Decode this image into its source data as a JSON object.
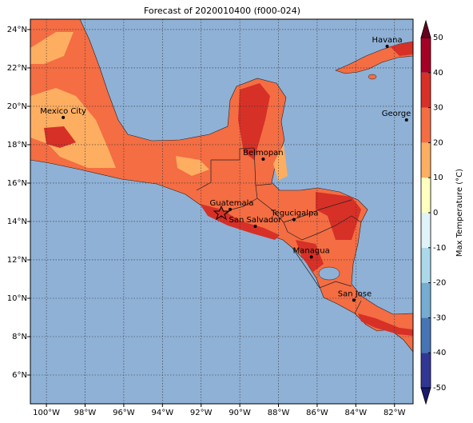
{
  "title": "Forecast of 2020010400 (f000-024)",
  "map": {
    "type": "contour-map",
    "xlim": [
      -100.83,
      -81.04
    ],
    "ylim": [
      4.5,
      24.54
    ],
    "xticks": [
      {
        "value": -100,
        "label": "100°W"
      },
      {
        "value": -98,
        "label": "98°W"
      },
      {
        "value": -96,
        "label": "96°W"
      },
      {
        "value": -94,
        "label": "94°W"
      },
      {
        "value": -92,
        "label": "92°W"
      },
      {
        "value": -90,
        "label": "90°W"
      },
      {
        "value": -88,
        "label": "88°W"
      },
      {
        "value": -86,
        "label": "86°W"
      },
      {
        "value": -84,
        "label": "84°W"
      },
      {
        "value": -82,
        "label": "82°W"
      }
    ],
    "yticks": [
      {
        "value": 6,
        "label": "6°N"
      },
      {
        "value": 8,
        "label": "8°N"
      },
      {
        "value": 10,
        "label": "10°N"
      },
      {
        "value": 12,
        "label": "12°N"
      },
      {
        "value": 14,
        "label": "14°N"
      },
      {
        "value": 16,
        "label": "16°N"
      },
      {
        "value": 18,
        "label": "18°N"
      },
      {
        "value": 20,
        "label": "20°N"
      },
      {
        "value": 22,
        "label": "22°N"
      },
      {
        "value": 24,
        "label": "24°N"
      }
    ],
    "grid": true,
    "cities": [
      {
        "name": "Mexico City",
        "lon": -99.13,
        "lat": 19.42
      },
      {
        "name": "Havana",
        "lon": -82.38,
        "lat": 23.13
      },
      {
        "name": "George Town",
        "lon": -81.38,
        "lat": 19.29
      },
      {
        "name": "Belmopan",
        "lon": -88.79,
        "lat": 17.25
      },
      {
        "name": "Guatemala",
        "lon": -90.5,
        "lat": 14.63
      },
      {
        "name": "San Salvador",
        "lon": -89.2,
        "lat": 13.75
      },
      {
        "name": "Tegucigalpa",
        "lon": -87.2,
        "lat": 14.1
      },
      {
        "name": "Managua",
        "lon": -86.3,
        "lat": 12.15
      },
      {
        "name": "San Jose",
        "lon": -84.1,
        "lat": 9.9
      }
    ]
  },
  "colorbar": {
    "label": "Max Temperature (°C)",
    "ticks": [
      -50,
      -40,
      -30,
      -20,
      -10,
      0,
      10,
      20,
      30,
      40,
      50
    ],
    "colors": [
      "#313695",
      "#4575b4",
      "#74add1",
      "#abd9e9",
      "#e0f3f8",
      "#ffffbf",
      "#fdae61",
      "#f46d43",
      "#d73027",
      "#a50026"
    ],
    "under_color": "#191970",
    "over_color": "#67001f"
  }
}
